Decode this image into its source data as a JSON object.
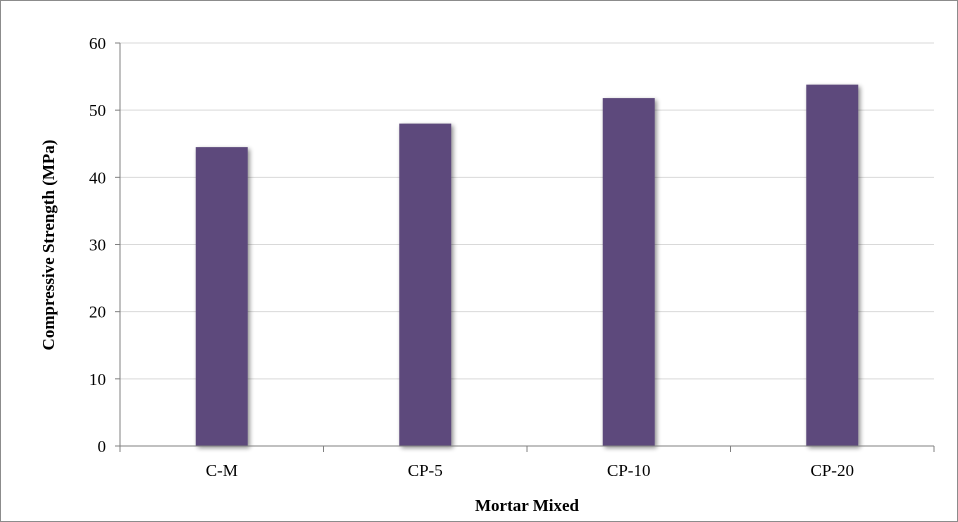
{
  "chart_data": {
    "type": "bar",
    "title": "",
    "xlabel": "Mortar Mixed",
    "ylabel": "Compressive Strength (MPa)",
    "categories": [
      "C-M",
      "CP-5",
      "CP-10",
      "CP-20"
    ],
    "values": [
      44.5,
      48.0,
      51.8,
      53.8
    ],
    "ylim": [
      0,
      60
    ],
    "yticks": [
      0,
      10,
      20,
      30,
      40,
      50,
      60
    ],
    "grid": true,
    "legend": "none",
    "colors": {
      "bar": "#5d4a7b",
      "grid": "#d9d9d9",
      "axis": "#808080"
    }
  }
}
